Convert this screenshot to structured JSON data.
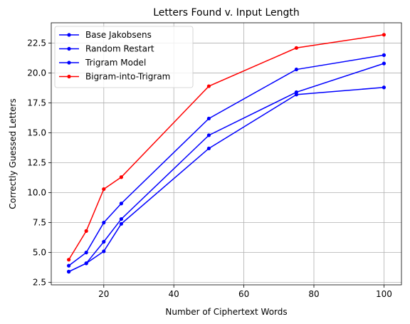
{
  "chart_data": {
    "type": "line",
    "title": "Letters Found v. Input Length",
    "xlabel": "Number of Ciphertext Words",
    "ylabel": "Correctly Guessed Letters",
    "xlim": [
      5,
      105
    ],
    "ylim": [
      2.3,
      24.2
    ],
    "xticks": [
      20,
      40,
      60,
      80,
      100
    ],
    "xtick_labels": [
      "20",
      "40",
      "60",
      "80",
      "100"
    ],
    "yticks": [
      2.5,
      5.0,
      7.5,
      10.0,
      12.5,
      15.0,
      17.5,
      20.0,
      22.5
    ],
    "ytick_labels": [
      "2.5",
      "5.0",
      "7.5",
      "10.0",
      "12.5",
      "15.0",
      "17.5",
      "20.0",
      "22.5"
    ],
    "grid": true,
    "legend_position": "top-left",
    "x": [
      10,
      15,
      20,
      25,
      50,
      75,
      100
    ],
    "series": [
      {
        "name": "Base Jakobsens",
        "color": "#0000ff",
        "values": [
          3.4,
          4.1,
          5.1,
          7.4,
          13.7,
          18.2,
          18.8
        ]
      },
      {
        "name": "Random Restart",
        "color": "#0000ff",
        "values": [
          3.4,
          4.1,
          5.9,
          7.8,
          14.8,
          18.4,
          20.8
        ]
      },
      {
        "name": "Trigram Model",
        "color": "#0000ff",
        "values": [
          3.9,
          5.0,
          7.5,
          9.1,
          16.2,
          20.3,
          21.5
        ]
      },
      {
        "name": "Bigram-into-Trigram",
        "color": "#ff0000",
        "values": [
          4.4,
          6.8,
          10.3,
          11.3,
          18.9,
          22.1,
          23.2
        ]
      }
    ]
  }
}
